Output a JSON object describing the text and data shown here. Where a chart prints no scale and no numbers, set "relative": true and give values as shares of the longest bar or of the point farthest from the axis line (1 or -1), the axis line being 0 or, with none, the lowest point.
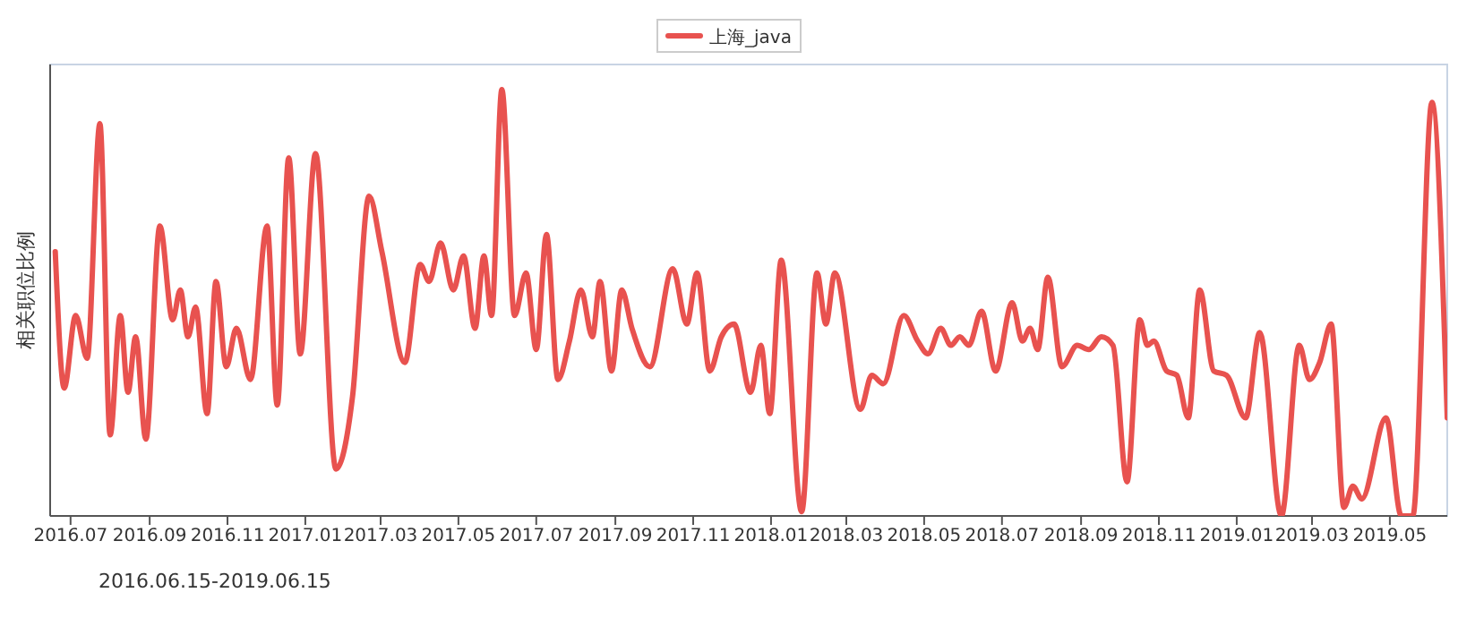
{
  "chart_data": {
    "type": "line",
    "relative": true,
    "ylabel": "相关职位比例",
    "legend": "top",
    "grid": false,
    "marker": "none",
    "line_style": "solid",
    "xlim": [
      "2016-06-15",
      "2019-06-15"
    ],
    "xticks": [
      {
        "value": "2016-07",
        "label": "2016.07"
      },
      {
        "value": "2016-09",
        "label": "2016.09"
      },
      {
        "value": "2016-11",
        "label": "2016.11"
      },
      {
        "value": "2017-01",
        "label": "2017.01"
      },
      {
        "value": "2017-03",
        "label": "2017.03"
      },
      {
        "value": "2017-05",
        "label": "2017.05"
      },
      {
        "value": "2017-07",
        "label": "2017.07"
      },
      {
        "value": "2017-09",
        "label": "2017.09"
      },
      {
        "value": "2017-11",
        "label": "2017.11"
      },
      {
        "value": "2018-01",
        "label": "2018.01"
      },
      {
        "value": "2018-03",
        "label": "2018.03"
      },
      {
        "value": "2018-05",
        "label": "2018.05"
      },
      {
        "value": "2018-07",
        "label": "2018.07"
      },
      {
        "value": "2018-09",
        "label": "2018.09"
      },
      {
        "value": "2018-11",
        "label": "2018.11"
      },
      {
        "value": "2019-01",
        "label": "2019.01"
      },
      {
        "value": "2019-03",
        "label": "2019.03"
      },
      {
        "value": "2019-05",
        "label": "2019.05"
      }
    ],
    "annotations": [
      "2016.06.15-2019.06.15"
    ],
    "x": [
      "2016-06-19",
      "2016-06-26",
      "2016-07-05",
      "2016-07-14",
      "2016-07-24",
      "2016-08-01",
      "2016-08-09",
      "2016-08-15",
      "2016-08-21",
      "2016-08-29",
      "2016-09-09",
      "2016-09-19",
      "2016-09-25",
      "2016-10-01",
      "2016-10-07",
      "2016-10-16",
      "2016-10-23",
      "2016-10-31",
      "2016-11-08",
      "2016-11-19",
      "2016-12-02",
      "2016-12-10",
      "2016-12-19",
      "2016-12-28",
      "2017-01-09",
      "2017-01-25",
      "2017-02-07",
      "2017-02-20",
      "2017-03-02",
      "2017-03-20",
      "2017-04-01",
      "2017-04-08",
      "2017-04-17",
      "2017-04-27",
      "2017-05-05",
      "2017-05-14",
      "2017-05-21",
      "2017-05-27",
      "2017-06-04",
      "2017-06-14",
      "2017-06-23",
      "2017-07-01",
      "2017-07-09",
      "2017-07-18",
      "2017-07-27",
      "2017-08-05",
      "2017-08-14",
      "2017-08-20",
      "2017-08-29",
      "2017-09-06",
      "2017-09-14",
      "2017-09-28",
      "2017-10-16",
      "2017-10-27",
      "2017-11-04",
      "2017-11-14",
      "2017-11-23",
      "2017-12-03",
      "2017-12-16",
      "2017-12-24",
      "2017-12-31",
      "2018-01-09",
      "2018-01-25",
      "2018-02-06",
      "2018-02-13",
      "2018-02-20",
      "2018-03-12",
      "2018-03-21",
      "2018-03-30",
      "2018-04-15",
      "2018-04-26",
      "2018-05-04",
      "2018-05-14",
      "2018-05-22",
      "2018-05-29",
      "2018-06-05",
      "2018-06-15",
      "2018-06-26",
      "2018-07-09",
      "2018-07-17",
      "2018-07-23",
      "2018-07-29",
      "2018-08-06",
      "2018-08-17",
      "2018-08-29",
      "2018-09-07",
      "2018-09-17",
      "2018-09-26",
      "2018-10-07",
      "2018-10-17",
      "2018-10-23",
      "2018-10-28",
      "2018-11-07",
      "2018-11-15",
      "2018-11-24",
      "2018-12-03",
      "2018-12-14",
      "2018-12-24",
      "2019-01-08",
      "2019-01-19",
      "2019-02-05",
      "2019-02-19",
      "2019-02-27",
      "2019-03-07",
      "2019-03-16",
      "2019-03-26",
      "2019-04-02",
      "2019-04-09",
      "2019-04-28",
      "2019-05-10",
      "2019-05-19",
      "2019-06-03",
      "2019-06-15"
    ],
    "series": [
      {
        "name": "上海_java",
        "color": "#e8524f",
        "values": [
          0.62,
          0.3,
          0.47,
          0.37,
          0.92,
          0.19,
          0.47,
          0.29,
          0.42,
          0.18,
          0.68,
          0.46,
          0.53,
          0.42,
          0.49,
          0.24,
          0.55,
          0.35,
          0.44,
          0.32,
          0.68,
          0.26,
          0.84,
          0.38,
          0.85,
          0.11,
          0.28,
          0.75,
          0.62,
          0.36,
          0.59,
          0.55,
          0.64,
          0.53,
          0.61,
          0.44,
          0.61,
          0.47,
          1.0,
          0.47,
          0.57,
          0.39,
          0.66,
          0.32,
          0.41,
          0.53,
          0.42,
          0.55,
          0.34,
          0.53,
          0.44,
          0.35,
          0.58,
          0.45,
          0.57,
          0.34,
          0.42,
          0.45,
          0.29,
          0.4,
          0.24,
          0.6,
          0.01,
          0.57,
          0.45,
          0.57,
          0.25,
          0.33,
          0.31,
          0.47,
          0.41,
          0.38,
          0.44,
          0.4,
          0.42,
          0.4,
          0.48,
          0.34,
          0.5,
          0.41,
          0.44,
          0.39,
          0.56,
          0.35,
          0.4,
          0.39,
          0.42,
          0.4,
          0.08,
          0.46,
          0.4,
          0.41,
          0.34,
          0.33,
          0.23,
          0.53,
          0.34,
          0.33,
          0.23,
          0.43,
          0,
          0.4,
          0.32,
          0.36,
          0.45,
          0.02,
          0.07,
          0.04,
          0.23,
          0,
          0,
          0.97,
          0.23
        ]
      }
    ]
  }
}
